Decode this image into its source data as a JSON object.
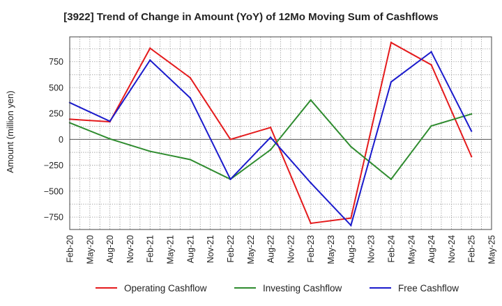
{
  "chart_data": {
    "type": "line",
    "title": "[3922]  Trend of Change in Amount (YoY) of 12Mo Moving Sum of Cashflows",
    "xlabel": "",
    "ylabel": "Amount (million yen)",
    "ylim": [
      -870,
      990
    ],
    "yticks": [
      750,
      500,
      250,
      0,
      -250,
      -500,
      -750
    ],
    "ytick_labels": [
      "750",
      "500",
      "250",
      "0",
      "−250",
      "−500",
      "−750"
    ],
    "x_tick_labels": [
      "Feb-20",
      "May-20",
      "Aug-20",
      "Nov-20",
      "Feb-21",
      "May-21",
      "Aug-21",
      "Nov-21",
      "Feb-22",
      "May-22",
      "Aug-22",
      "Nov-22",
      "Feb-23",
      "May-23",
      "Aug-23",
      "Nov-23",
      "Feb-24",
      "May-24",
      "Aug-24",
      "Nov-24",
      "Feb-25",
      "May-25"
    ],
    "x_points": [
      "Feb-20",
      "Aug-20",
      "Feb-21",
      "Aug-21",
      "Feb-22",
      "Aug-22",
      "Feb-23",
      "Aug-23",
      "Feb-24",
      "Aug-24",
      "Feb-25"
    ],
    "grid": true,
    "legend_position": "bottom",
    "series": [
      {
        "name": "Operating Cashflow",
        "color": "#e41a1c",
        "values": [
          195,
          170,
          880,
          595,
          0,
          115,
          -810,
          -760,
          935,
          720,
          -165
        ]
      },
      {
        "name": "Investing Cashflow",
        "color": "#2e8b2e",
        "values": [
          160,
          5,
          -115,
          -195,
          -385,
          -100,
          380,
          -70,
          -385,
          130,
          245
        ]
      },
      {
        "name": "Free Cashflow",
        "color": "#1a1acc",
        "values": [
          355,
          175,
          765,
          400,
          -385,
          20,
          -420,
          -830,
          555,
          845,
          80
        ]
      }
    ]
  }
}
